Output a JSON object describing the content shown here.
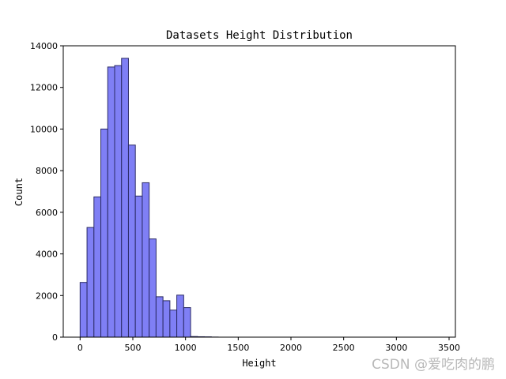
{
  "chart_data": {
    "type": "bar",
    "title": "Datasets Height Distribution",
    "xlabel": "Height",
    "ylabel": "Count",
    "bin_start": 0,
    "bin_width": 65.5,
    "values": [
      2630,
      5270,
      6740,
      10000,
      12980,
      13050,
      13400,
      9230,
      6780,
      7420,
      4720,
      1940,
      1750,
      1300,
      2020,
      1420,
      30,
      20,
      15,
      5
    ],
    "xlim": [
      -160,
      3560
    ],
    "ylim": [
      0,
      14000
    ],
    "xticks": [
      "0",
      "500",
      "1000",
      "1500",
      "2000",
      "2500",
      "3000",
      "3500"
    ],
    "yticks": [
      "0",
      "2000",
      "4000",
      "6000",
      "8000",
      "10000",
      "12000",
      "14000"
    ],
    "bar_color": "#7f7ff5",
    "edge_color": "#2b2b66",
    "grid": false,
    "legend": "none"
  },
  "watermark": "CSDN @爱吃肉的鹏"
}
